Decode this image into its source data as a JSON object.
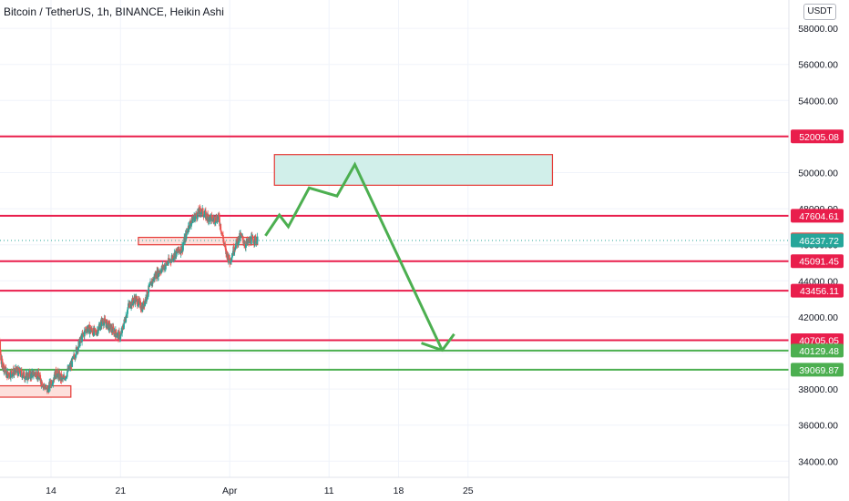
{
  "header": {
    "title": "Bitcoin / TetherUS, 1h, BINANCE, Heikin Ashi",
    "unit": "USDT"
  },
  "chart_data": {
    "type": "candlestick",
    "symbol": "Bitcoin / TetherUS",
    "interval": "1h",
    "exchange": "BINANCE",
    "style": "Heikin Ashi",
    "ylim": [
      32500,
      59000
    ],
    "price_ticks": [
      "58000.00",
      "56000.00",
      "54000.00",
      "52000.00",
      "50000.00",
      "48000.00",
      "46000.00",
      "44000.00",
      "42000.00",
      "40000.00",
      "38000.00",
      "36000.00",
      "34000.00"
    ],
    "time_ticks": [
      {
        "label": "14",
        "day": 14
      },
      {
        "label": "21",
        "day": 21
      },
      {
        "label": "Apr",
        "day": 32
      },
      {
        "label": "11",
        "day": 42
      },
      {
        "label": "18",
        "day": 49
      },
      {
        "label": "25",
        "day": 56
      }
    ],
    "current_price": {
      "value": 46237.72,
      "label": "46237.72",
      "color": "#26a69a"
    },
    "horizontal_levels": [
      {
        "value": 52005.08,
        "label": "52005.08",
        "color": "#e91e4c"
      },
      {
        "value": 47604.61,
        "label": "47604.61",
        "color": "#e91e4c"
      },
      {
        "value": 46301.65,
        "label": "46301.65",
        "color": "#ef5350"
      },
      {
        "value": 45091.45,
        "label": "45091.45",
        "color": "#e91e4c"
      },
      {
        "value": 43456.11,
        "label": "43456.11",
        "color": "#e91e4c"
      },
      {
        "value": 40705.05,
        "label": "40705.05",
        "color": "#e91e4c"
      },
      {
        "value": 40129.48,
        "label": "40129.48",
        "color": "#4caf50"
      },
      {
        "value": 39069.87,
        "label": "39069.87",
        "color": "#4caf50"
      }
    ],
    "zones": [
      {
        "day_from": 36.5,
        "day_to": 64.5,
        "price_top": 51000,
        "price_bottom": 49300,
        "fill": "#d1efea",
        "stroke": "#e53935"
      },
      {
        "day_from": 22.8,
        "day_to": 34.8,
        "price_top": 46410,
        "price_bottom": 46000,
        "fill": "#fde0dc",
        "stroke": "#e53935"
      },
      {
        "day_from": 7.5,
        "day_to": 16.0,
        "price_top": 38180,
        "price_bottom": 37550,
        "fill": "#fde0dc",
        "stroke": "#e53935"
      }
    ],
    "projection_path": [
      {
        "day": 35.6,
        "price": 46500
      },
      {
        "day": 37.0,
        "price": 47650
      },
      {
        "day": 37.9,
        "price": 47000
      },
      {
        "day": 40.0,
        "price": 49150
      },
      {
        "day": 42.8,
        "price": 48700
      },
      {
        "day": 44.6,
        "price": 50450
      },
      {
        "day": 53.4,
        "price": 40150
      }
    ],
    "projection_arrowhead": [
      {
        "day": 51.3,
        "price": 40550
      },
      {
        "day": 53.4,
        "price": 40150
      },
      {
        "day": 54.6,
        "price": 41050
      }
    ],
    "projection_color": "#4caf50",
    "grid": true,
    "colors": {
      "up": "#26a69a",
      "down": "#ef5350"
    }
  }
}
